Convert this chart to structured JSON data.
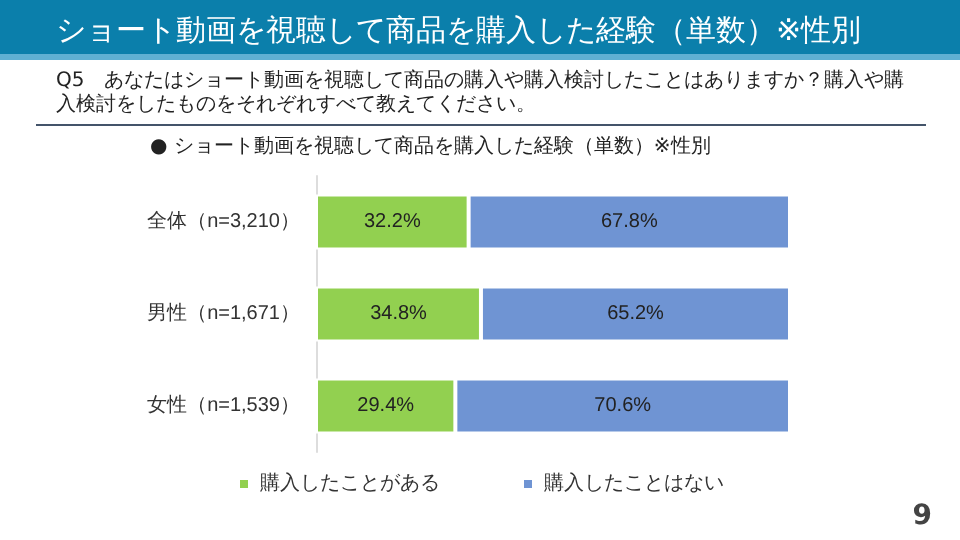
{
  "chart_data": {
    "type": "bar",
    "orientation": "horizontal",
    "stacked": true,
    "title": "ショート動画を視聴して商品を購入した経験（単数）※性別",
    "subtitle": "Q5　あなたはショート動画を視聴して商品の購入や購入検討したことはありますか？購入や購入検討をしたものをそれぞれすべて教えてください。",
    "annotations": [
      "● ショート動画を視聴して商品を購入した経験（単数）※性別",
      "9"
    ],
    "categories": [
      "全体（n=3,210）",
      "男性（n=1,671）",
      "女性（n=1,539）"
    ],
    "xlim": [
      0,
      100
    ],
    "tick_labels": "y",
    "grid": false,
    "legend": "bottom",
    "series": [
      {
        "name": "購入したことがある",
        "color": "#92d050",
        "values": [
          32.2,
          34.8,
          29.4
        ],
        "value_labels": [
          "32.2%",
          "34.8%",
          "29.4%"
        ]
      },
      {
        "name": "購入したことはない",
        "color": "#6f94d3",
        "values": [
          67.8,
          65.2,
          70.6
        ],
        "value_labels": [
          "67.8%",
          "65.2%",
          "70.6%"
        ]
      }
    ]
  }
}
